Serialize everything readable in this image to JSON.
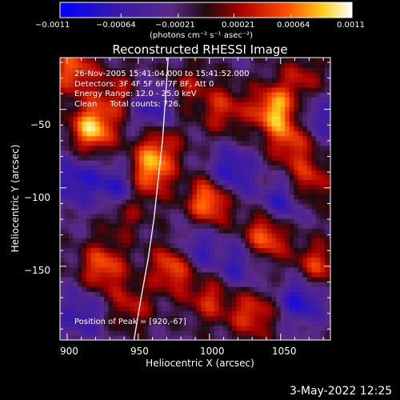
{
  "chart_data": {
    "type": "heatmap",
    "title": "Reconstructed RHESSI Image",
    "xlabel": "Heliocentric X (arcsec)",
    "ylabel": "Heliocentric Y (arcsec)",
    "x_ticks": [
      "900",
      "950",
      "1000",
      "1050"
    ],
    "x_tick_values": [
      900,
      950,
      1000,
      1050
    ],
    "y_ticks": [
      "−50",
      "−100",
      "−150"
    ],
    "y_tick_values": [
      -50,
      -100,
      -150
    ],
    "xlim": [
      895,
      1085
    ],
    "ylim": [
      -197,
      -17
    ],
    "colorbar": {
      "ticks": [
        "−0.0011",
        "−0.00064",
        "−0.00021",
        "0.00021",
        "0.00064",
        "0.0011"
      ],
      "tick_values": [
        -0.0011,
        -0.00064,
        -0.00021,
        0.00021,
        0.00064,
        0.0011
      ],
      "range": [
        -0.0011,
        0.0011
      ],
      "label": "(photons cm⁻² s⁻¹ asec⁻²)",
      "colormap": "blue-purple-red-yellow-white"
    },
    "annotations": [
      "26-Nov-2005 15:41:04.000 to 15:41:52.000",
      "Detectors: 3F 4F 5F 6F 7F 8F, Att 0",
      "Energy Range: 12.0 - 25.0 keV",
      "Clean     Total counts: 726."
    ],
    "peak": {
      "x": 920,
      "y": -67,
      "label": "Position of Peak = [920,-67]"
    },
    "limb_curve": [
      [
        947,
        -197
      ],
      [
        952,
        -170
      ],
      [
        957,
        -145
      ],
      [
        961,
        -120
      ],
      [
        964,
        -95
      ],
      [
        967,
        -70
      ],
      [
        969,
        -45
      ],
      [
        971,
        -17
      ]
    ],
    "hot_spots": [
      {
        "x": 918,
        "y": -62,
        "v": 0.0011
      },
      {
        "x": 904,
        "y": -25,
        "v": 0.0008
      },
      {
        "x": 935,
        "y": -40,
        "v": 0.0005
      },
      {
        "x": 958,
        "y": -90,
        "v": 0.0009
      },
      {
        "x": 965,
        "y": -72,
        "v": 0.0006
      },
      {
        "x": 1000,
        "y": -108,
        "v": 0.001
      },
      {
        "x": 975,
        "y": -150,
        "v": 0.0009
      },
      {
        "x": 1045,
        "y": -50,
        "v": 0.001
      },
      {
        "x": 1010,
        "y": -50,
        "v": 0.0006
      },
      {
        "x": 1040,
        "y": -130,
        "v": 0.0009
      },
      {
        "x": 1070,
        "y": -95,
        "v": 0.0006
      },
      {
        "x": 1075,
        "y": -150,
        "v": 0.0007
      },
      {
        "x": 925,
        "y": -150,
        "v": 0.0008
      },
      {
        "x": 945,
        "y": -175,
        "v": 0.0005
      },
      {
        "x": 1000,
        "y": -170,
        "v": 0.0006
      },
      {
        "x": 1030,
        "y": -180,
        "v": 0.0007
      },
      {
        "x": 985,
        "y": -35,
        "v": 0.0004
      },
      {
        "x": 1065,
        "y": -30,
        "v": 0.0005
      },
      {
        "x": 1058,
        "y": -70,
        "v": 0.0007
      },
      {
        "x": 940,
        "y": -115,
        "v": 0.0005
      }
    ],
    "cold_spots": [
      {
        "x": 905,
        "y": -95,
        "v": -0.0006
      },
      {
        "x": 935,
        "y": -100,
        "v": -0.0007
      },
      {
        "x": 1015,
        "y": -90,
        "v": -0.0007
      },
      {
        "x": 1050,
        "y": -110,
        "v": -0.0006
      },
      {
        "x": 1065,
        "y": -170,
        "v": -0.0007
      },
      {
        "x": 990,
        "y": -140,
        "v": -0.0006
      },
      {
        "x": 960,
        "y": -50,
        "v": -0.0006
      },
      {
        "x": 1075,
        "y": -55,
        "v": -0.0005
      },
      {
        "x": 1020,
        "y": -150,
        "v": -0.0005
      },
      {
        "x": 910,
        "y": -180,
        "v": -0.0005
      }
    ]
  },
  "footer": {
    "timestamp": "3-May-2022 12:25"
  }
}
